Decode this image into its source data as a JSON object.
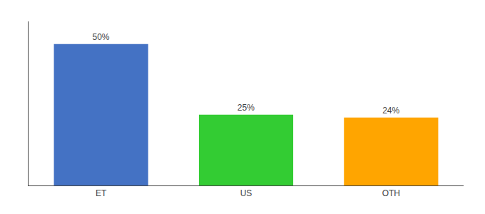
{
  "chart_data": {
    "type": "bar",
    "categories": [
      "ET",
      "US",
      "OTH"
    ],
    "values": [
      50,
      25,
      24
    ],
    "value_labels": [
      "50%",
      "25%",
      "24%"
    ],
    "data_labels": true,
    "colors": [
      "#4472C4",
      "#33CC33",
      "#FFA500"
    ],
    "ylim": [
      0,
      58
    ],
    "grid": false,
    "tick_labels": "x"
  }
}
